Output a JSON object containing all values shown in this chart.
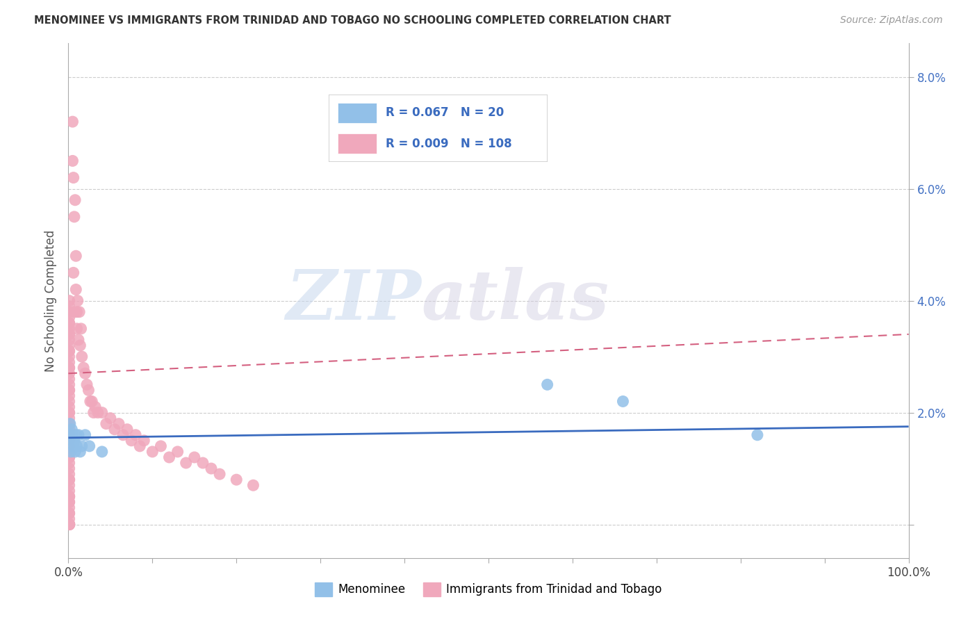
{
  "title": "MENOMINEE VS IMMIGRANTS FROM TRINIDAD AND TOBAGO NO SCHOOLING COMPLETED CORRELATION CHART",
  "source": "Source: ZipAtlas.com",
  "ylabel": "No Schooling Completed",
  "xlim": [
    0,
    1.0
  ],
  "ylim": [
    -0.006,
    0.086
  ],
  "xtick_vals": [
    0.0,
    0.1,
    0.2,
    0.3,
    0.4,
    0.5,
    0.6,
    0.7,
    0.8,
    0.9,
    1.0
  ],
  "xtick_labels": [
    "0.0%",
    "",
    "",
    "",
    "",
    "",
    "",
    "",
    "",
    "",
    "100.0%"
  ],
  "ytick_vals": [
    0.0,
    0.02,
    0.04,
    0.06,
    0.08
  ],
  "ytick_labels": [
    "",
    "2.0%",
    "4.0%",
    "6.0%",
    "8.0%"
  ],
  "blue_color": "#92c0e8",
  "pink_color": "#f0a8bc",
  "trend_blue_color": "#3a6bbf",
  "trend_pink_color": "#d46080",
  "legend_r_blue": "0.067",
  "legend_n_blue": "20",
  "legend_r_pink": "0.009",
  "legend_n_pink": "108",
  "legend_label_blue": "Menominee",
  "legend_label_pink": "Immigrants from Trinidad and Tobago",
  "blue_trend_y0": 0.0155,
  "blue_trend_y1": 0.0175,
  "pink_trend_y0": 0.027,
  "pink_trend_y1": 0.034,
  "blue_x": [
    0.001,
    0.002,
    0.003,
    0.003,
    0.004,
    0.005,
    0.006,
    0.007,
    0.008,
    0.009,
    0.01,
    0.012,
    0.014,
    0.016,
    0.02,
    0.025,
    0.04,
    0.57,
    0.66,
    0.82
  ],
  "blue_y": [
    0.016,
    0.018,
    0.015,
    0.013,
    0.017,
    0.016,
    0.014,
    0.015,
    0.013,
    0.016,
    0.014,
    0.016,
    0.013,
    0.014,
    0.016,
    0.014,
    0.013,
    0.025,
    0.022,
    0.016
  ],
  "pink_x_0": [
    0.001,
    0.001,
    0.001,
    0.001,
    0.001,
    0.001,
    0.001,
    0.001,
    0.001,
    0.001,
    0.001,
    0.001,
    0.001,
    0.001,
    0.001,
    0.001,
    0.001,
    0.001,
    0.001,
    0.001,
    0.001,
    0.001,
    0.001,
    0.001,
    0.001,
    0.001,
    0.001,
    0.001,
    0.001,
    0.001,
    0.001,
    0.001,
    0.001,
    0.001,
    0.001,
    0.001,
    0.001,
    0.001,
    0.001,
    0.001,
    0.001,
    0.001,
    0.001,
    0.001,
    0.001,
    0.001,
    0.001,
    0.001,
    0.001,
    0.001,
    0.001,
    0.001,
    0.001,
    0.001,
    0.001,
    0.001,
    0.001,
    0.001,
    0.001,
    0.001
  ],
  "pink_y_0": [
    0.0,
    0.0,
    0.0,
    0.002,
    0.002,
    0.004,
    0.004,
    0.005,
    0.005,
    0.006,
    0.007,
    0.008,
    0.009,
    0.01,
    0.011,
    0.012,
    0.013,
    0.014,
    0.015,
    0.016,
    0.017,
    0.018,
    0.019,
    0.02,
    0.021,
    0.022,
    0.023,
    0.024,
    0.025,
    0.026,
    0.027,
    0.028,
    0.029,
    0.03,
    0.031,
    0.032,
    0.033,
    0.034,
    0.034,
    0.035,
    0.036,
    0.037,
    0.038,
    0.039,
    0.04,
    0.036,
    0.031,
    0.028,
    0.024,
    0.02,
    0.016,
    0.012,
    0.008,
    0.005,
    0.003,
    0.001,
    0.0,
    0.0,
    0.0,
    0.0
  ],
  "pink_x_spread": [
    0.005,
    0.005,
    0.006,
    0.006,
    0.007,
    0.007,
    0.008,
    0.009,
    0.009,
    0.01,
    0.01,
    0.011,
    0.012,
    0.013,
    0.014,
    0.015,
    0.016,
    0.018,
    0.02,
    0.022,
    0.024,
    0.026,
    0.028,
    0.03,
    0.032,
    0.035,
    0.04,
    0.045,
    0.05,
    0.055,
    0.06,
    0.065,
    0.07,
    0.075,
    0.08,
    0.085,
    0.09,
    0.1,
    0.11,
    0.12,
    0.13,
    0.14,
    0.15,
    0.16,
    0.17,
    0.18,
    0.2,
    0.22
  ],
  "pink_y_spread": [
    0.065,
    0.072,
    0.045,
    0.062,
    0.038,
    0.055,
    0.058,
    0.042,
    0.048,
    0.038,
    0.035,
    0.04,
    0.033,
    0.038,
    0.032,
    0.035,
    0.03,
    0.028,
    0.027,
    0.025,
    0.024,
    0.022,
    0.022,
    0.02,
    0.021,
    0.02,
    0.02,
    0.018,
    0.019,
    0.017,
    0.018,
    0.016,
    0.017,
    0.015,
    0.016,
    0.014,
    0.015,
    0.013,
    0.014,
    0.012,
    0.013,
    0.011,
    0.012,
    0.011,
    0.01,
    0.009,
    0.008,
    0.007
  ]
}
